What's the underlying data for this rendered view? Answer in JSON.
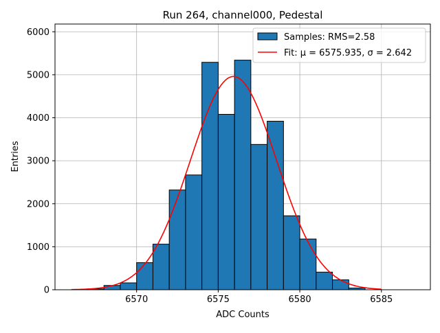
{
  "chart_data": {
    "type": "bar",
    "subtype": "histogram",
    "title": "Run 264, channel000, Pedestal",
    "xlabel": "ADC Counts",
    "ylabel": "Entries",
    "xlim": [
      6565.0,
      6588.0
    ],
    "ylim": [
      0,
      6180
    ],
    "grid": true,
    "xticks": [
      6570,
      6575,
      6580,
      6585
    ],
    "yticks": [
      0,
      1000,
      2000,
      3000,
      4000,
      5000,
      6000
    ],
    "legend_position": "top-right",
    "bin_edges": [
      6567,
      6568,
      6569,
      6570,
      6571,
      6572,
      6573,
      6574,
      6575,
      6576,
      6577,
      6578,
      6579,
      6580,
      6581,
      6582,
      6583,
      6584
    ],
    "counts": [
      20,
      100,
      160,
      630,
      1060,
      2320,
      2670,
      5290,
      4080,
      5340,
      3380,
      3920,
      1720,
      1180,
      410,
      230,
      40
    ],
    "series": [
      {
        "name": "Samples: RMS=2.58",
        "kind": "histogram",
        "color": "#1f77b4",
        "edgecolor": "#000000"
      },
      {
        "name": "Fit: μ = 6575.935, σ = 2.642",
        "kind": "line",
        "color": "#ff0000",
        "mu": 6575.935,
        "sigma": 2.642,
        "amplitude": 4960,
        "x_range": [
          6566,
          6585
        ]
      }
    ]
  }
}
